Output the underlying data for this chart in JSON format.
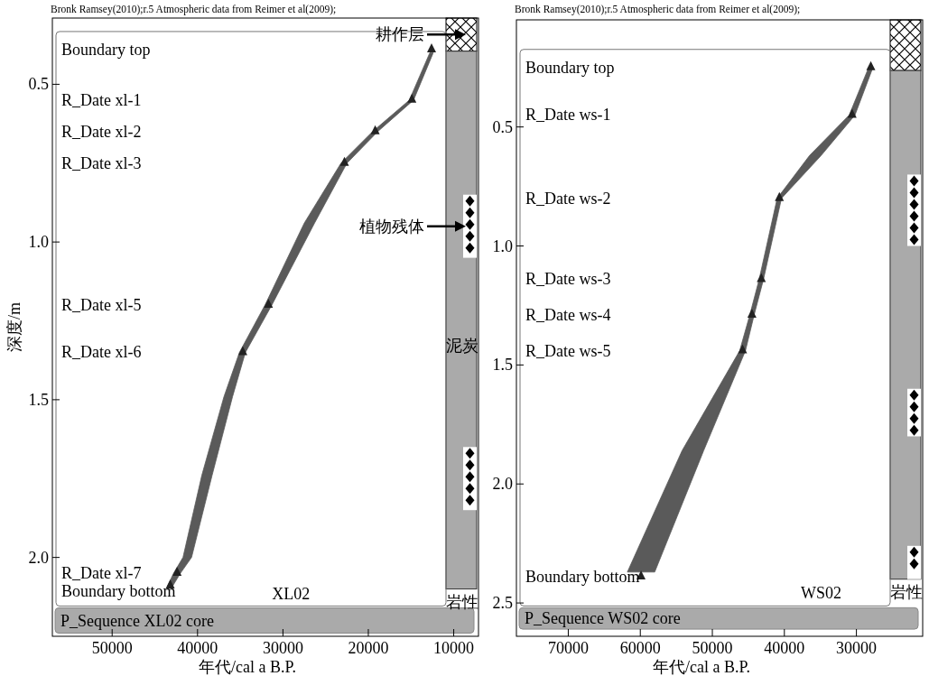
{
  "chart_data": [
    {
      "type": "area",
      "xlabel": "年代/cal a B.P.",
      "ylabel": "深度/m",
      "xlim": [
        57000,
        7100
      ],
      "ylim": [
        2.25,
        0.29
      ],
      "xticks": [
        50000,
        40000,
        30000,
        20000,
        10000
      ],
      "yticks": [
        {
          "value": 0.5,
          "label": "0.5"
        },
        {
          "value": 1,
          "label": "1.0"
        },
        {
          "value": 1.5,
          "label": "1.5"
        },
        {
          "value": 2,
          "label": "2.0"
        }
      ],
      "series": [
        {
          "color": "#5a5a5a",
          "x": [
            12400,
            14700,
            18900,
            22500,
            26300,
            31300,
            34400,
            35900,
            38300,
            40700,
            42000,
            42900,
            43500,
            42800,
            41700,
            39500,
            36900,
            35100,
            32100,
            27500,
            23200,
            19500,
            15200,
            12800
          ],
          "values": [
            0.4,
            0.55,
            0.65,
            0.75,
            0.94,
            1.2,
            1.35,
            1.49,
            1.74,
            2.0,
            2.05,
            2.09,
            2.09,
            2.05,
            2.0,
            1.74,
            1.49,
            1.35,
            1.2,
            0.94,
            0.75,
            0.65,
            0.55,
            0.4
          ]
        },
        {
          "type": "scatter",
          "marker": "triangle",
          "color": "#222222",
          "x": [
            12600,
            14900,
            19200,
            22800,
            31700,
            34700,
            42400,
            43200
          ],
          "values": [
            0.39,
            0.55,
            0.65,
            0.75,
            1.2,
            1.35,
            2.05,
            2.09
          ]
        }
      ],
      "bands": [
        {
          "axis": "y",
          "from": 2.16,
          "to": 2.24,
          "label": "P_Sequence XL02 core",
          "color": "#aaaaaa"
        }
      ],
      "annotations": [
        "Bronk Ramsey(2010);r.5 Atmospheric data from Reimer et al(2009);",
        "XL02",
        "耕作层",
        "植物残体",
        "泥炭",
        "岩性",
        "Boundary top",
        "R_Date xl-1",
        "R_Date xl-2",
        "R_Date xl-3",
        "R_Date xl-5",
        "R_Date xl-6",
        "R_Date xl-7",
        "Boundary bottom"
      ]
    },
    {
      "type": "area",
      "xlabel": "年代/cal a B.P.",
      "xlim": [
        77200,
        20800
      ],
      "ylim": [
        2.64,
        0.05
      ],
      "xticks": [
        70000,
        60000,
        50000,
        40000,
        30000
      ],
      "yticks": [
        {
          "value": 0.5,
          "label": "0.5"
        },
        {
          "value": 1,
          "label": "1.0"
        },
        {
          "value": 1.5,
          "label": "1.5"
        },
        {
          "value": 2,
          "label": "2.0"
        },
        {
          "value": 2.5,
          "label": "2.5"
        }
      ],
      "series": [
        {
          "color": "#5a5a5a",
          "x": [
            27700,
            30200,
            34900,
            40400,
            42900,
            44200,
            45400,
            51200,
            58000,
            61800,
            54200,
            46200,
            44800,
            43500,
            41000,
            36500,
            31000,
            28300
          ],
          "values": [
            0.25,
            0.45,
            0.62,
            0.8,
            1.14,
            1.29,
            1.44,
            1.86,
            2.37,
            2.37,
            1.86,
            1.44,
            1.29,
            1.14,
            0.8,
            0.62,
            0.45,
            0.25
          ]
        },
        {
          "type": "scatter",
          "marker": "triangle",
          "color": "#222222",
          "x": [
            28000,
            30600,
            40700,
            43200,
            44500,
            45800,
            59900
          ],
          "values": [
            0.25,
            0.45,
            0.8,
            1.14,
            1.29,
            1.44,
            2.39
          ]
        }
      ],
      "bands": [
        {
          "axis": "y",
          "from": 2.52,
          "to": 2.61,
          "label": "P_Sequence WS02 core",
          "color": "#aaaaaa"
        }
      ],
      "annotations": [
        "Bronk Ramsey(2010);r.5 Atmospheric data from Reimer et al(2009);",
        "WS02",
        "岩性",
        "Boundary top",
        "R_Date ws-1",
        "R_Date ws-2",
        "R_Date ws-3",
        "R_Date ws-4",
        "R_Date ws-5",
        "Boundary bottom"
      ]
    }
  ]
}
